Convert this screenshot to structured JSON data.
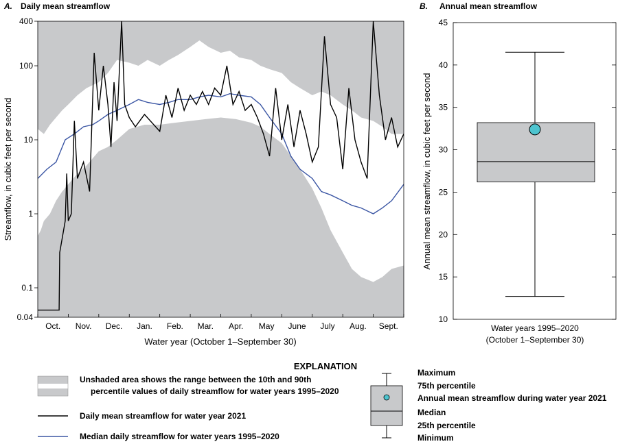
{
  "chart_data": [
    {
      "type": "area",
      "panel_label": "A.",
      "title": "Daily mean streamflow",
      "xlabel": "Water year (October 1–September 30)",
      "ylabel": "Streamflow, in cubic feet per second",
      "yscale": "log",
      "ylim": [
        0.04,
        400
      ],
      "y_ticks": [
        0.04,
        0.1,
        1,
        10,
        100,
        400
      ],
      "y_tick_labels": [
        "0.04",
        "0.1",
        "1",
        "10",
        "100",
        "400"
      ],
      "x_tick_labels": [
        "Oct.",
        "Nov.",
        "Dec.",
        "Jan.",
        "Feb.",
        "Mar.",
        "Apr.",
        "May",
        "June",
        "July",
        "Aug.",
        "Sept."
      ],
      "x_month_index": [
        0,
        1,
        2,
        3,
        4,
        5,
        6,
        7,
        8,
        9,
        10,
        11,
        12
      ],
      "series": [
        {
          "name": "10th percentile",
          "x": [
            0,
            0.1,
            0.2,
            0.4,
            0.6,
            0.8,
            1.0,
            1.3,
            1.6,
            2.0,
            2.3,
            2.6,
            3.0,
            3.5,
            4.0,
            4.5,
            5.0,
            5.5,
            6.0,
            6.5,
            7.0,
            7.3,
            7.6,
            8.0,
            8.3,
            8.6,
            9.0,
            9.3,
            9.6,
            10.0,
            10.3,
            10.6,
            11.0,
            11.3,
            11.6,
            12.0
          ],
          "values": [
            0.5,
            0.6,
            0.8,
            1.0,
            1.5,
            2.0,
            2.5,
            3.5,
            4.5,
            7,
            8,
            10,
            14,
            16,
            16,
            17,
            18,
            19,
            20,
            19,
            17,
            15,
            12,
            9,
            6,
            4,
            2.2,
            1.2,
            0.6,
            0.3,
            0.18,
            0.14,
            0.12,
            0.14,
            0.18,
            0.2
          ]
        },
        {
          "name": "90th percentile",
          "x": [
            0,
            0.2,
            0.4,
            0.6,
            0.8,
            1.0,
            1.3,
            1.6,
            2.0,
            2.3,
            2.6,
            3.0,
            3.3,
            3.6,
            4.0,
            4.3,
            4.6,
            5.0,
            5.3,
            5.6,
            6.0,
            6.3,
            6.6,
            7.0,
            7.3,
            7.6,
            8.0,
            8.3,
            8.6,
            9.0,
            9.3,
            9.6,
            10.0,
            10.3,
            10.6,
            11.0,
            11.3,
            11.6,
            12.0
          ],
          "values": [
            14,
            12,
            16,
            20,
            25,
            30,
            40,
            50,
            60,
            80,
            120,
            110,
            100,
            120,
            100,
            120,
            140,
            180,
            220,
            180,
            150,
            160,
            130,
            120,
            100,
            90,
            80,
            60,
            50,
            40,
            45,
            40,
            30,
            25,
            20,
            18,
            15,
            12,
            12
          ]
        },
        {
          "name": "Daily mean streamflow for water year 2021",
          "x": [
            0,
            0.7,
            0.72,
            0.9,
            0.95,
            1.0,
            1.1,
            1.2,
            1.3,
            1.5,
            1.7,
            1.85,
            2.0,
            2.15,
            2.3,
            2.4,
            2.5,
            2.6,
            2.75,
            2.85,
            3.0,
            3.2,
            3.5,
            4.0,
            4.2,
            4.4,
            4.6,
            4.8,
            5.0,
            5.2,
            5.4,
            5.6,
            5.8,
            6.0,
            6.2,
            6.4,
            6.6,
            6.8,
            7.0,
            7.2,
            7.4,
            7.6,
            7.8,
            8.0,
            8.2,
            8.4,
            8.6,
            8.8,
            9.0,
            9.2,
            9.4,
            9.6,
            9.8,
            10.0,
            10.2,
            10.4,
            10.6,
            10.8,
            11.0,
            11.2,
            11.4,
            11.6,
            11.8,
            12.0
          ],
          "values": [
            0.05,
            0.05,
            0.3,
            0.8,
            3.5,
            0.8,
            1.0,
            18,
            3,
            5,
            2,
            150,
            25,
            100,
            30,
            8,
            60,
            18,
            400,
            30,
            20,
            15,
            22,
            13,
            40,
            20,
            50,
            25,
            40,
            30,
            45,
            30,
            50,
            40,
            100,
            30,
            45,
            25,
            30,
            20,
            12,
            6,
            50,
            10,
            30,
            8,
            25,
            12,
            5,
            8,
            250,
            30,
            20,
            4,
            50,
            10,
            5,
            3,
            400,
            40,
            10,
            20,
            8,
            12
          ]
        },
        {
          "name": "Median daily streamflow for water years 1995–2020",
          "x": [
            0,
            0.3,
            0.6,
            0.9,
            1.2,
            1.5,
            1.8,
            2.0,
            2.3,
            2.6,
            3.0,
            3.3,
            3.6,
            4.0,
            4.3,
            4.6,
            5.0,
            5.3,
            5.6,
            6.0,
            6.3,
            6.6,
            7.0,
            7.3,
            7.6,
            8.0,
            8.3,
            8.6,
            9.0,
            9.3,
            9.6,
            10.0,
            10.3,
            10.6,
            11.0,
            11.3,
            11.6,
            12.0
          ],
          "values": [
            3,
            4,
            5,
            10,
            12,
            15,
            16,
            18,
            22,
            25,
            30,
            35,
            32,
            30,
            32,
            35,
            35,
            38,
            40,
            38,
            42,
            40,
            38,
            30,
            20,
            12,
            6,
            4,
            3,
            2,
            1.8,
            1.5,
            1.3,
            1.2,
            1.0,
            1.2,
            1.5,
            2.5
          ]
        }
      ]
    },
    {
      "type": "box",
      "panel_label": "B.",
      "title": "Annual mean streamflow",
      "ylabel": "Annual mean streamflow, in cubic feet per second",
      "ylim": [
        10,
        45
      ],
      "y_ticks": [
        10,
        15,
        20,
        25,
        30,
        35,
        40,
        45
      ],
      "category": "Water years 1995–2020",
      "category_sub": "(October 1–September 30)",
      "box": {
        "min": 12.7,
        "q1": 26.2,
        "median": 28.6,
        "q3": 33.2,
        "max": 41.5
      },
      "point": {
        "name": "Annual mean streamflow during water year 2021",
        "value": 32.4,
        "color": "#4dc4cf"
      }
    }
  ],
  "explanation": {
    "title": "EXPLANATION",
    "range_line1": "Unshaded area shows the range between the 10th and 90th",
    "range_line2": "percentile values of daily streamflow for water years 1995–2020",
    "daily_2021": "Daily mean streamflow for water year 2021",
    "median_daily": "Median daily streamflow for water years 1995–2020",
    "box_labels": {
      "maximum": "Maximum",
      "p75": "75th percentile",
      "annual_2021": "Annual mean streamflow during water year 2021",
      "median": "Median",
      "p25": "25th percentile",
      "minimum": "Minimum"
    }
  },
  "colors": {
    "shade": "#c8c9cb",
    "median_line": "#3b56a4",
    "daily_line": "#000000",
    "point_fill": "#4dc4cf"
  }
}
